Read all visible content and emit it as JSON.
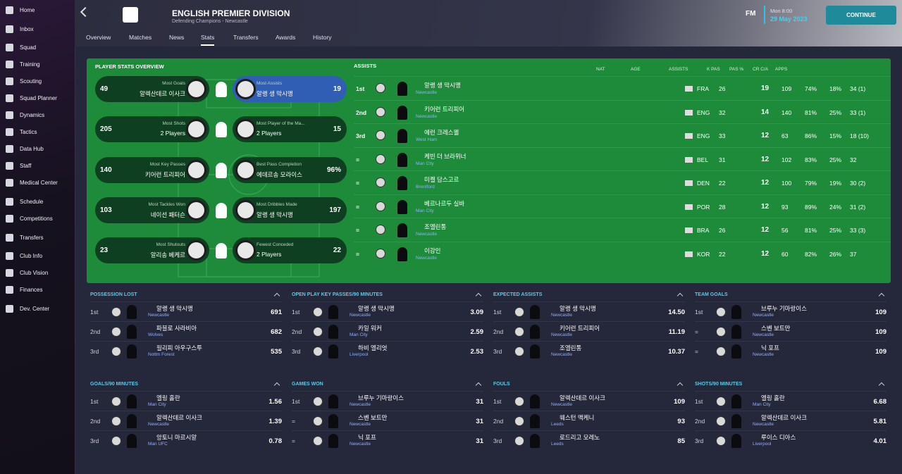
{
  "sidebar": [
    "Home",
    "Inbox",
    "Squad",
    "Training",
    "Scouting",
    "Squad Planner",
    "Dynamics",
    "Tactics",
    "Data Hub",
    "Staff",
    "Medical Center",
    "Schedule",
    "Competitions",
    "Transfers",
    "Club Info",
    "Club Vision",
    "Finances",
    "Dev. Center"
  ],
  "header": {
    "title": "ENGLISH PREMIER DIVISION",
    "subtitle": "Defending Champions - Newcastle",
    "tabs": [
      "Overview",
      "Matches",
      "News",
      "Stats",
      "Transfers",
      "Awards",
      "History"
    ],
    "logo": "FM",
    "time": "Mon 8:00",
    "date": "29 May 2023",
    "continue": "CONTINUE"
  },
  "overview": {
    "title": "PLAYER STATS OVERVIEW",
    "rows": [
      {
        "left": {
          "value": "49",
          "label": "Most Goals",
          "player": "알렉산데르 이사크"
        },
        "right": {
          "value": "19",
          "label": "Most Assists",
          "player": "알랭 생 막시맹"
        }
      },
      {
        "left": {
          "value": "205",
          "label": "Most Shots",
          "player": "2 Players"
        },
        "right": {
          "value": "15",
          "label": "Most Player of the Ma...",
          "player": "2 Players"
        }
      },
      {
        "left": {
          "value": "140",
          "label": "Most Key Passes",
          "player": "키어런 트리피어"
        },
        "right": {
          "value": "96%",
          "label": "Best Pass Completion",
          "player": "에데르송 모라이스"
        }
      },
      {
        "left": {
          "value": "103",
          "label": "Most Tackles Won",
          "player": "네이선 패터슨"
        },
        "right": {
          "value": "197",
          "label": "Most Dribbles Made",
          "player": "알랭 생 막시맹"
        }
      },
      {
        "left": {
          "value": "23",
          "label": "Most Shutouts",
          "player": "알리송 베케르"
        },
        "right": {
          "value": "22",
          "label": "Fewest Conceded",
          "player": "2 Players"
        }
      }
    ]
  },
  "assists": {
    "title": "ASSISTS",
    "columns": [
      "NAT",
      "AGE",
      "ASSISTS",
      "K PAS",
      "PAS %",
      "CR C/A",
      "APPS"
    ],
    "rows": [
      [
        "1st",
        "알랭 생 막시맹",
        "Newcastle",
        "FRA",
        "26",
        "19",
        "109",
        "74%",
        "18%",
        "34 (1)"
      ],
      [
        "2nd",
        "키어런 트리피어",
        "Newcastle",
        "ENG",
        "32",
        "14",
        "140",
        "81%",
        "25%",
        "33 (1)"
      ],
      [
        "3rd",
        "에런 크레스웰",
        "West Ham",
        "ENG",
        "33",
        "12",
        "63",
        "86%",
        "15%",
        "18 (10)"
      ],
      [
        "=",
        "케빈 더 브라위너",
        "Man City",
        "BEL",
        "31",
        "12",
        "102",
        "83%",
        "25%",
        "32"
      ],
      [
        "=",
        "미켈 담스고르",
        "Brentford",
        "DEN",
        "22",
        "12",
        "100",
        "79%",
        "19%",
        "30 (2)"
      ],
      [
        "=",
        "베르나르두 실바",
        "Man City",
        "POR",
        "28",
        "12",
        "93",
        "89%",
        "24%",
        "31 (2)"
      ],
      [
        "=",
        "조엘린통",
        "Newcastle",
        "BRA",
        "26",
        "12",
        "56",
        "81%",
        "25%",
        "33 (3)"
      ],
      [
        "=",
        "이강인",
        "Newcastle",
        "KOR",
        "22",
        "12",
        "60",
        "82%",
        "26%",
        "37"
      ]
    ]
  },
  "panels": [
    {
      "title": "POSSESSION LOST",
      "rows": [
        [
          "1st",
          "알랭 생 막시맹",
          "Newcastle",
          "691"
        ],
        [
          "2nd",
          "파블로 사라비아",
          "Wolves",
          "682"
        ],
        [
          "3rd",
          "필리피 아우구스투",
          "Nottm Forest",
          "535"
        ]
      ]
    },
    {
      "title": "OPEN PLAY KEY PASSES/90 MINUTES",
      "rows": [
        [
          "1st",
          "알랭 생 막시맹",
          "Newcastle",
          "3.09"
        ],
        [
          "2nd",
          "카일 워커",
          "Man City",
          "2.59"
        ],
        [
          "3rd",
          "하비 엘리엇",
          "Liverpool",
          "2.53"
        ]
      ]
    },
    {
      "title": "EXPECTED ASSISTS",
      "rows": [
        [
          "1st",
          "알랭 생 막시맹",
          "Newcastle",
          "14.50"
        ],
        [
          "2nd",
          "키어런 트리피어",
          "Newcastle",
          "11.19"
        ],
        [
          "3rd",
          "조엘린통",
          "Newcastle",
          "10.37"
        ]
      ]
    },
    {
      "title": "TEAM GOALS",
      "rows": [
        [
          "1st",
          "브루누 기마랑이스",
          "Newcastle",
          "109"
        ],
        [
          "=",
          "스벤 보트만",
          "Newcastle",
          "109"
        ],
        [
          "=",
          "닉 포프",
          "Newcastle",
          "109"
        ]
      ]
    },
    {
      "title": "GOALS/90 MINUTES",
      "rows": [
        [
          "1st",
          "엘링 홀란",
          "Man City",
          "1.56"
        ],
        [
          "2nd",
          "알렉산데르 이사크",
          "Newcastle",
          "1.39"
        ],
        [
          "3rd",
          "앙토니 마르시알",
          "Man UFC",
          "0.78"
        ]
      ]
    },
    {
      "title": "GAMES WON",
      "rows": [
        [
          "1st",
          "브루누 기마랑이스",
          "Newcastle",
          "31"
        ],
        [
          "=",
          "스벤 보트만",
          "Newcastle",
          "31"
        ],
        [
          "=",
          "닉 포프",
          "Newcastle",
          "31"
        ]
      ]
    },
    {
      "title": "FOULS",
      "rows": [
        [
          "1st",
          "알렉산데르 이사크",
          "Newcastle",
          "109"
        ],
        [
          "2nd",
          "웨스턴 맥케니",
          "Leeds",
          "93"
        ],
        [
          "3rd",
          "로드리고 모레노",
          "Leeds",
          "85"
        ]
      ]
    },
    {
      "title": "SHOTS/90 MINUTES",
      "rows": [
        [
          "1st",
          "엘링 홀란",
          "Man City",
          "6.68"
        ],
        [
          "2nd",
          "알렉산데르 이사크",
          "Newcastle",
          "5.81"
        ],
        [
          "3rd",
          "루이스 디아스",
          "Liverpool",
          "4.01"
        ]
      ]
    }
  ]
}
